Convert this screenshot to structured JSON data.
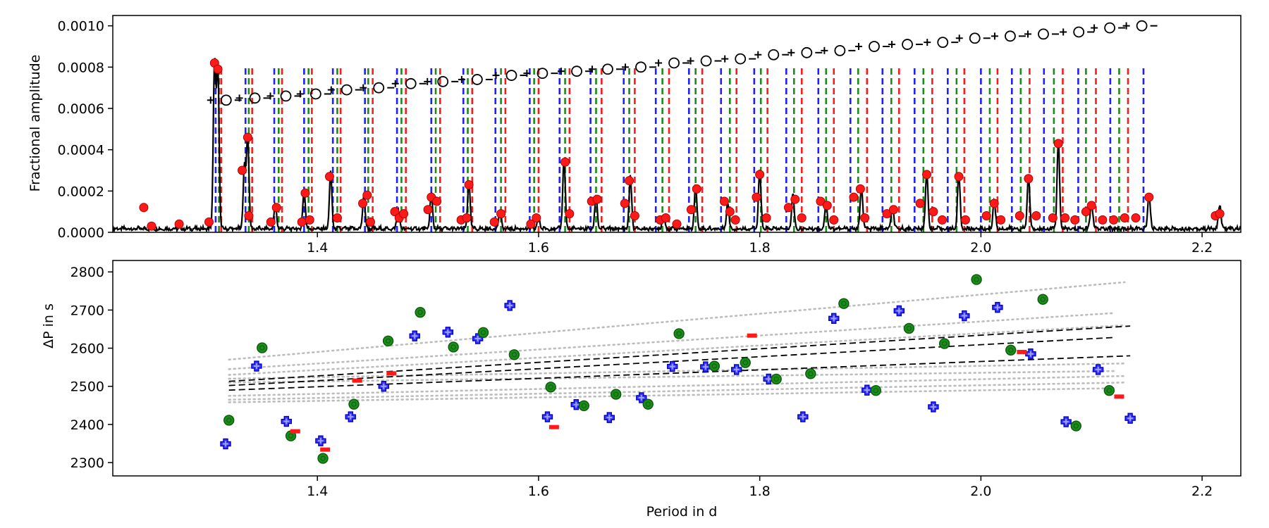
{
  "chart_data": [
    {
      "type": "line",
      "name": "periodogram",
      "xlabel": "",
      "ylabel": "Fractional amplitude",
      "xlim": [
        1.215,
        2.235
      ],
      "ylim": [
        0.0,
        0.00105
      ],
      "x_ticks": [
        1.4,
        1.6,
        1.8,
        2.0,
        2.2
      ],
      "x_tick_labels": [
        "1.4",
        "1.6",
        "1.8",
        "2.0",
        "2.2"
      ],
      "y_ticks": [
        0.0,
        0.0002,
        0.0004,
        0.0006,
        0.0008,
        0.001
      ],
      "y_tick_labels": [
        "0.0000",
        "0.0002",
        "0.0004",
        "0.0006",
        "0.0008",
        "0.0010"
      ],
      "noise_level": 3e-05,
      "peaks": [
        [
          1.307,
          0.00082
        ],
        [
          1.31,
          0.00078
        ],
        [
          1.334,
          0.0003
        ],
        [
          1.337,
          0.00045
        ],
        [
          1.362,
          0.00012
        ],
        [
          1.388,
          0.00019
        ],
        [
          1.412,
          0.00027
        ],
        [
          1.442,
          0.00016
        ],
        [
          1.473,
          0.0001
        ],
        [
          1.503,
          0.00017
        ],
        [
          1.537,
          0.00023
        ],
        [
          1.565,
          9e-05
        ],
        [
          1.6,
          6e-05
        ],
        [
          1.623,
          0.00034
        ],
        [
          1.652,
          0.00016
        ],
        [
          1.683,
          0.00025
        ],
        [
          1.713,
          7e-05
        ],
        [
          1.742,
          0.00021
        ],
        [
          1.771,
          0.00013
        ],
        [
          1.8,
          0.00028
        ],
        [
          1.83,
          0.00017
        ],
        [
          1.86,
          0.00013
        ],
        [
          1.892,
          0.00021
        ],
        [
          1.92,
          0.00011
        ],
        [
          1.951,
          0.00028
        ],
        [
          1.98,
          0.00027
        ],
        [
          2.012,
          0.00014
        ],
        [
          2.043,
          0.00026
        ],
        [
          2.07,
          0.00043
        ],
        [
          2.1,
          0.00013
        ],
        [
          2.152,
          0.00017
        ],
        [
          2.216,
          0.00012
        ]
      ],
      "extracted_frequencies": [
        [
          1.243,
          0.00012
        ],
        [
          1.25,
          3e-05
        ],
        [
          1.275,
          4e-05
        ],
        [
          1.302,
          5e-05
        ],
        [
          1.307,
          0.00082
        ],
        [
          1.31,
          0.00079
        ],
        [
          1.332,
          0.0003
        ],
        [
          1.337,
          0.00046
        ],
        [
          1.338,
          8e-05
        ],
        [
          1.358,
          5e-05
        ],
        [
          1.363,
          0.00012
        ],
        [
          1.386,
          5e-05
        ],
        [
          1.389,
          0.00019
        ],
        [
          1.393,
          6e-05
        ],
        [
          1.411,
          0.00027
        ],
        [
          1.418,
          7e-05
        ],
        [
          1.441,
          0.00014
        ],
        [
          1.445,
          0.00018
        ],
        [
          1.448,
          5e-05
        ],
        [
          1.47,
          0.0001
        ],
        [
          1.474,
          7e-05
        ],
        [
          1.478,
          9e-05
        ],
        [
          1.5,
          0.00011
        ],
        [
          1.503,
          0.00017
        ],
        [
          1.508,
          0.00015
        ],
        [
          1.53,
          6e-05
        ],
        [
          1.535,
          7e-05
        ],
        [
          1.537,
          0.00023
        ],
        [
          1.56,
          5e-05
        ],
        [
          1.566,
          9e-05
        ],
        [
          1.593,
          4e-05
        ],
        [
          1.598,
          7e-05
        ],
        [
          1.624,
          0.00034
        ],
        [
          1.628,
          9e-05
        ],
        [
          1.648,
          0.00015
        ],
        [
          1.653,
          0.00016
        ],
        [
          1.678,
          0.00014
        ],
        [
          1.682,
          0.00025
        ],
        [
          1.687,
          8e-05
        ],
        [
          1.71,
          6e-05
        ],
        [
          1.715,
          7e-05
        ],
        [
          1.725,
          4e-05
        ],
        [
          1.738,
          0.00011
        ],
        [
          1.743,
          0.00021
        ],
        [
          1.768,
          0.00015
        ],
        [
          1.773,
          0.0001
        ],
        [
          1.778,
          6e-05
        ],
        [
          1.797,
          0.00017
        ],
        [
          1.8,
          0.00028
        ],
        [
          1.806,
          7e-05
        ],
        [
          1.826,
          0.00012
        ],
        [
          1.832,
          0.00016
        ],
        [
          1.838,
          7e-05
        ],
        [
          1.855,
          0.00015
        ],
        [
          1.861,
          0.00013
        ],
        [
          1.867,
          6e-05
        ],
        [
          1.885,
          0.00017
        ],
        [
          1.891,
          0.00021
        ],
        [
          1.895,
          7e-05
        ],
        [
          1.915,
          9e-05
        ],
        [
          1.921,
          0.00011
        ],
        [
          1.945,
          0.00014
        ],
        [
          1.951,
          0.00028
        ],
        [
          1.957,
          0.0001
        ],
        [
          1.965,
          6e-05
        ],
        [
          1.98,
          0.00027
        ],
        [
          1.986,
          6e-05
        ],
        [
          2.005,
          8e-05
        ],
        [
          2.012,
          0.00014
        ],
        [
          2.018,
          6e-05
        ],
        [
          2.035,
          8e-05
        ],
        [
          2.043,
          0.00026
        ],
        [
          2.05,
          8e-05
        ],
        [
          2.065,
          7e-05
        ],
        [
          2.07,
          0.00043
        ],
        [
          2.076,
          7e-05
        ],
        [
          2.085,
          6e-05
        ],
        [
          2.095,
          0.0001
        ],
        [
          2.1,
          0.00013
        ],
        [
          2.11,
          6e-05
        ],
        [
          2.12,
          6e-05
        ],
        [
          2.13,
          7e-05
        ],
        [
          2.14,
          7e-05
        ],
        [
          2.152,
          0.00017
        ],
        [
          2.212,
          8e-05
        ],
        [
          2.216,
          9e-05
        ]
      ],
      "mode_lines": {
        "height": 0.00081,
        "blue": [
          1.308,
          1.335,
          1.361,
          1.388,
          1.414,
          1.443,
          1.472,
          1.503,
          1.532,
          1.561,
          1.592,
          1.619,
          1.647,
          1.677,
          1.706,
          1.736,
          1.765,
          1.795,
          1.824,
          1.853,
          1.882,
          1.911,
          1.94,
          1.97,
          2.0,
          2.028,
          2.057,
          2.088,
          2.117,
          2.147
        ],
        "green": [
          1.311,
          1.338,
          1.365,
          1.392,
          1.418,
          1.446,
          1.476,
          1.507,
          1.536,
          1.566,
          1.596,
          1.624,
          1.652,
          1.682,
          1.712,
          1.742,
          1.773,
          1.801,
          1.831,
          1.86,
          1.889,
          1.919,
          1.948,
          1.978,
          2.008,
          2.036,
          2.066,
          2.095,
          2.125
        ],
        "red": [
          1.313,
          1.341,
          1.368,
          1.395,
          1.421,
          1.45,
          1.48,
          1.511,
          1.54,
          1.57,
          1.6,
          1.628,
          1.657,
          1.687,
          1.718,
          1.748,
          1.779,
          1.807,
          1.838,
          1.867,
          1.897,
          1.926,
          1.956,
          1.985,
          2.015,
          2.044,
          2.074,
          2.104,
          2.133
        ]
      },
      "echelle_markers": [
        [
          1.3175,
          0.00064
        ],
        [
          1.3435,
          0.00065
        ],
        [
          1.3715,
          0.00066
        ],
        [
          1.3985,
          0.00067
        ],
        [
          1.4265,
          0.00069
        ],
        [
          1.4555,
          0.0007
        ],
        [
          1.4845,
          0.00072
        ],
        [
          1.5135,
          0.00073
        ],
        [
          1.5445,
          0.00074
        ],
        [
          1.5755,
          0.00076
        ],
        [
          1.6035,
          0.00077
        ],
        [
          1.6345,
          0.00078
        ],
        [
          1.6625,
          0.00079
        ],
        [
          1.6925,
          0.0008
        ],
        [
          1.7225,
          0.00082
        ],
        [
          1.7515,
          0.00083
        ],
        [
          1.7825,
          0.00084
        ],
        [
          1.8125,
          0.00086
        ],
        [
          1.8425,
          0.00087
        ],
        [
          1.8725,
          0.00088
        ],
        [
          1.9035,
          0.0009
        ],
        [
          1.9335,
          0.00091
        ],
        [
          1.9655,
          0.00092
        ],
        [
          1.9945,
          0.00094
        ],
        [
          2.0265,
          0.00095
        ],
        [
          2.0565,
          0.00096
        ],
        [
          2.0885,
          0.00097
        ],
        [
          2.1165,
          0.00099
        ],
        [
          2.1455,
          0.001
        ]
      ]
    },
    {
      "type": "scatter",
      "name": "period-spacing",
      "xlabel": "Period in d",
      "ylabel": "ΔP in s",
      "xlim": [
        1.215,
        2.235
      ],
      "ylim": [
        2265,
        2830
      ],
      "x_ticks": [
        1.4,
        1.6,
        1.8,
        2.0,
        2.2
      ],
      "x_tick_labels": [
        "1.4",
        "1.6",
        "1.8",
        "2.0",
        "2.2"
      ],
      "y_ticks": [
        2300,
        2400,
        2500,
        2600,
        2700,
        2800
      ],
      "y_tick_labels": [
        "2300",
        "2400",
        "2500",
        "2600",
        "2700",
        "2800"
      ],
      "series": [
        {
          "name": "blue",
          "marker": "plus",
          "points": [
            [
              1.317,
              2349
            ],
            [
              1.345,
              2553
            ],
            [
              1.372,
              2408
            ],
            [
              1.403,
              2357
            ],
            [
              1.43,
              2420
            ],
            [
              1.46,
              2500
            ],
            [
              1.488,
              2632
            ],
            [
              1.518,
              2642
            ],
            [
              1.545,
              2625
            ],
            [
              1.574,
              2712
            ],
            [
              1.608,
              2420
            ],
            [
              1.634,
              2452
            ],
            [
              1.664,
              2418
            ],
            [
              1.693,
              2470
            ],
            [
              1.721,
              2552
            ],
            [
              1.751,
              2551
            ],
            [
              1.779,
              2544
            ],
            [
              1.808,
              2519
            ],
            [
              1.839,
              2420
            ],
            [
              1.867,
              2678
            ],
            [
              1.897,
              2490
            ],
            [
              1.926,
              2698
            ],
            [
              1.957,
              2446
            ],
            [
              1.985,
              2685
            ],
            [
              2.015,
              2707
            ],
            [
              2.045,
              2585
            ],
            [
              2.077,
              2407
            ],
            [
              2.106,
              2544
            ],
            [
              2.135,
              2416
            ]
          ]
        },
        {
          "name": "green",
          "marker": "circle",
          "points": [
            [
              1.32,
              2411
            ],
            [
              1.35,
              2601
            ],
            [
              1.376,
              2370
            ],
            [
              1.405,
              2311
            ],
            [
              1.433,
              2453
            ],
            [
              1.464,
              2619
            ],
            [
              1.493,
              2694
            ],
            [
              1.523,
              2603
            ],
            [
              1.55,
              2641
            ],
            [
              1.578,
              2583
            ],
            [
              1.611,
              2498
            ],
            [
              1.641,
              2449
            ],
            [
              1.67,
              2479
            ],
            [
              1.699,
              2453
            ],
            [
              1.727,
              2638
            ],
            [
              1.759,
              2553
            ],
            [
              1.787,
              2562
            ],
            [
              1.815,
              2519
            ],
            [
              1.846,
              2533
            ],
            [
              1.876,
              2717
            ],
            [
              1.905,
              2489
            ],
            [
              1.935,
              2652
            ],
            [
              1.967,
              2612
            ],
            [
              1.996,
              2780
            ],
            [
              2.027,
              2595
            ],
            [
              2.056,
              2728
            ],
            [
              2.086,
              2396
            ],
            [
              2.116,
              2489
            ]
          ]
        },
        {
          "name": "red",
          "marker": "dash",
          "points": [
            [
              1.38,
              2382
            ],
            [
              1.407,
              2334
            ],
            [
              1.436,
              2515
            ],
            [
              1.467,
              2534
            ],
            [
              1.614,
              2393
            ],
            [
              1.793,
              2633
            ],
            [
              2.037,
              2590
            ],
            [
              2.125,
              2473
            ]
          ]
        }
      ],
      "fit_lines_dashed": [
        [
          [
            1.32,
            2513
          ],
          [
            2.135,
            2658
          ]
        ],
        [
          [
            1.32,
            2502
          ],
          [
            2.12,
            2628
          ]
        ],
        [
          [
            1.32,
            2490
          ],
          [
            2.135,
            2580
          ]
        ]
      ],
      "fit_lines_dotted": [
        [
          [
            1.32,
            2570
          ],
          [
            2.13,
            2773
          ]
        ],
        [
          [
            1.32,
            2545
          ],
          [
            2.12,
            2692
          ]
        ],
        [
          [
            1.32,
            2530
          ],
          [
            2.13,
            2660
          ]
        ],
        [
          [
            1.32,
            2520
          ],
          [
            2.13,
            2560
          ]
        ],
        [
          [
            1.32,
            2510
          ],
          [
            2.12,
            2540
          ]
        ],
        [
          [
            1.32,
            2475
          ],
          [
            2.13,
            2527
          ]
        ],
        [
          [
            1.32,
            2465
          ],
          [
            2.13,
            2510
          ]
        ],
        [
          [
            1.32,
            2458
          ],
          [
            2.12,
            2495
          ]
        ]
      ]
    }
  ]
}
